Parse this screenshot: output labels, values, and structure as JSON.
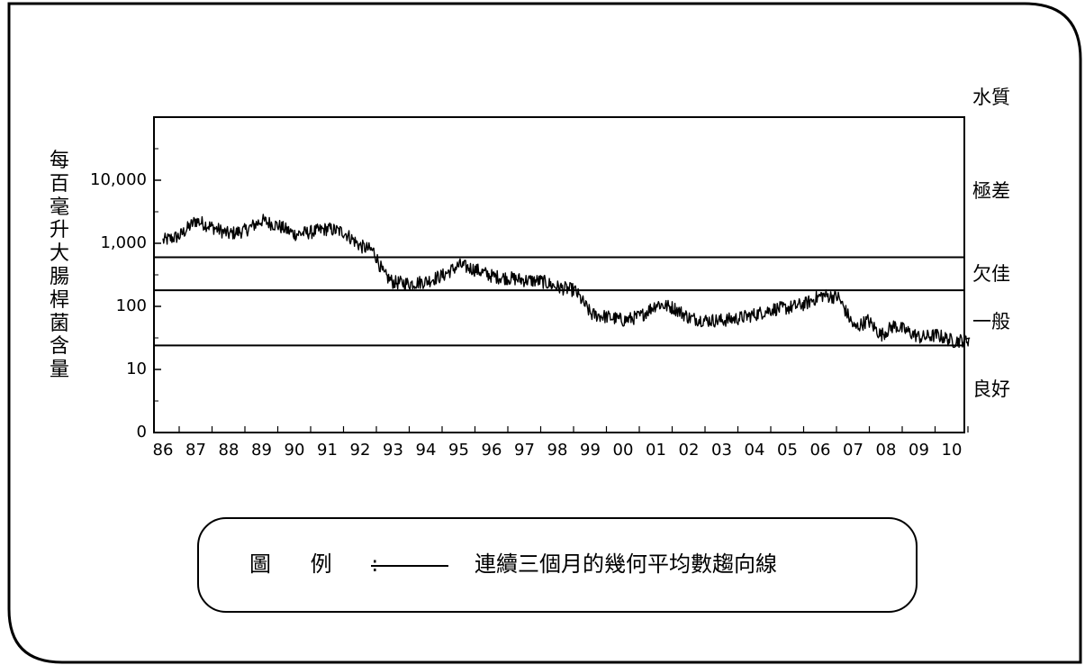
{
  "chart_data": {
    "type": "line",
    "ylabel": "每百毫升大腸桿菌含量",
    "yscale": "log",
    "yticks": [
      "10,000",
      "1,000",
      "100",
      "10",
      "0"
    ],
    "xticks": [
      "86",
      "87",
      "88",
      "89",
      "90",
      "91",
      "92",
      "93",
      "94",
      "95",
      "96",
      "97",
      "98",
      "99",
      "00",
      "01",
      "02",
      "03",
      "04",
      "05",
      "06",
      "07",
      "08",
      "09",
      "10"
    ],
    "quality_header": "水質",
    "quality_bands": [
      {
        "label": "極差",
        "lower": 600
      },
      {
        "label": "欠佳",
        "lower": 180,
        "upper": 600
      },
      {
        "label": "一般",
        "lower": 24,
        "upper": 180
      },
      {
        "label": "良好",
        "upper": 24
      }
    ],
    "series": [
      {
        "x": [
          1986.0,
          1986.5,
          1987.0,
          1987.5,
          1988.0,
          1988.5,
          1989.0,
          1989.5,
          1990.0,
          1990.5,
          1991.0,
          1991.5,
          1992.0,
          1992.4,
          1992.7,
          1993.0,
          1993.5,
          1994.0,
          1994.5,
          1995.0,
          1995.5,
          1996.0,
          1996.5,
          1997.0,
          1997.5,
          1998.0,
          1998.5,
          1999.0,
          1999.5,
          2000.0,
          2000.5,
          2001.0,
          2001.5,
          2002.0,
          2002.5,
          2003.0,
          2003.5,
          2004.0,
          2004.5,
          2005.0,
          2005.5,
          2006.0,
          2006.5,
          2007.0,
          2007.4,
          2007.8,
          2008.2,
          2008.6,
          2009.0,
          2009.5,
          2010.0,
          2010.5
        ],
        "y": [
          1100,
          1300,
          2300,
          1800,
          1400,
          1600,
          2300,
          1900,
          1400,
          1500,
          1700,
          1500,
          900,
          750,
          320,
          240,
          230,
          250,
          310,
          450,
          380,
          300,
          280,
          260,
          250,
          200,
          180,
          75,
          68,
          60,
          70,
          110,
          95,
          65,
          60,
          60,
          65,
          75,
          90,
          95,
          110,
          150,
          140,
          45,
          60,
          35,
          50,
          40,
          32,
          35,
          28,
          30
        ]
      }
    ]
  },
  "legend": {
    "title": "圖 例 :",
    "text": "連續三個月的幾何平均數趨向線"
  }
}
